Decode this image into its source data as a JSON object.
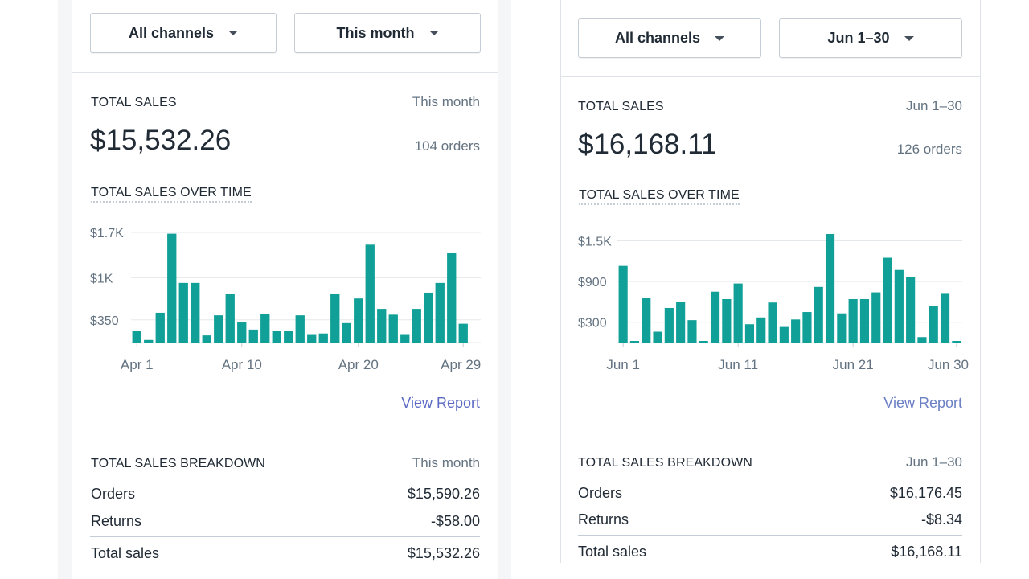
{
  "left": {
    "channel_filter": "All channels",
    "date_filter": "This month",
    "total_sales_label": "TOTAL SALES",
    "period_label": "This month",
    "total_amount": "$15,532.26",
    "orders_count": "104 orders",
    "over_time_label": "TOTAL SALES OVER TIME",
    "view_report": "View Report",
    "breakdown_label": "TOTAL SALES BREAKDOWN",
    "breakdown_period": "This month",
    "breakdown": [
      {
        "label": "Orders",
        "value": "$15,590.26"
      },
      {
        "label": "Returns",
        "value": "-$58.00"
      },
      {
        "label": "Total sales",
        "value": "$15,532.26"
      }
    ]
  },
  "right": {
    "channel_filter": "All channels",
    "date_filter": "Jun 1–30",
    "total_sales_label": "TOTAL SALES",
    "period_label": "Jun 1–30",
    "total_amount": "$16,168.11",
    "orders_count": "126 orders",
    "over_time_label": "TOTAL SALES OVER TIME",
    "view_report": "View Report",
    "breakdown_label": "TOTAL SALES BREAKDOWN",
    "breakdown_period": "Jun 1–30",
    "breakdown": [
      {
        "label": "Orders",
        "value": "$16,176.45"
      },
      {
        "label": "Returns",
        "value": "-$8.34"
      },
      {
        "label": "Total sales",
        "value": "$16,168.11"
      }
    ]
  },
  "colors": {
    "bar": "#10a097",
    "grid": "#e6e9ec",
    "axis_text": "#637381"
  },
  "chart_data": [
    {
      "type": "bar",
      "title": "TOTAL SALES OVER TIME",
      "x_tick_labels": [
        "Apr 1",
        "Apr 10",
        "Apr 20",
        "Apr 29"
      ],
      "x_tick_days": [
        1,
        10,
        20,
        29
      ],
      "y_tick_labels": [
        "$1.7K",
        "$1K",
        "$350"
      ],
      "y_ticks": [
        1700,
        1000,
        350
      ],
      "ylim": [
        0,
        1700
      ],
      "grid": true,
      "days": [
        1,
        2,
        3,
        4,
        5,
        6,
        7,
        8,
        9,
        10,
        11,
        12,
        13,
        14,
        15,
        16,
        17,
        18,
        19,
        20,
        21,
        22,
        23,
        24,
        25,
        26,
        27,
        28,
        29,
        30
      ],
      "values": [
        180,
        40,
        460,
        1680,
        920,
        920,
        110,
        420,
        750,
        310,
        200,
        440,
        180,
        180,
        420,
        130,
        140,
        750,
        300,
        680,
        1510,
        520,
        430,
        130,
        520,
        770,
        920,
        1390,
        290,
        0
      ]
    },
    {
      "type": "bar",
      "title": "TOTAL SALES OVER TIME",
      "x_tick_labels": [
        "Jun 1",
        "Jun 11",
        "Jun 21",
        "Jun 30"
      ],
      "x_tick_days": [
        1,
        11,
        21,
        30
      ],
      "y_tick_labels": [
        "$1.5K",
        "$900",
        "$300"
      ],
      "y_ticks": [
        1500,
        900,
        300
      ],
      "ylim": [
        0,
        1600
      ],
      "grid": true,
      "days": [
        1,
        2,
        3,
        4,
        5,
        6,
        7,
        8,
        9,
        10,
        11,
        12,
        13,
        14,
        15,
        16,
        17,
        18,
        19,
        20,
        21,
        22,
        23,
        24,
        25,
        26,
        27,
        28,
        29,
        30
      ],
      "values": [
        1130,
        20,
        660,
        160,
        510,
        600,
        330,
        20,
        750,
        640,
        870,
        270,
        370,
        590,
        230,
        340,
        450,
        820,
        1600,
        430,
        640,
        640,
        740,
        1250,
        1070,
        970,
        80,
        540,
        730,
        20
      ]
    }
  ]
}
